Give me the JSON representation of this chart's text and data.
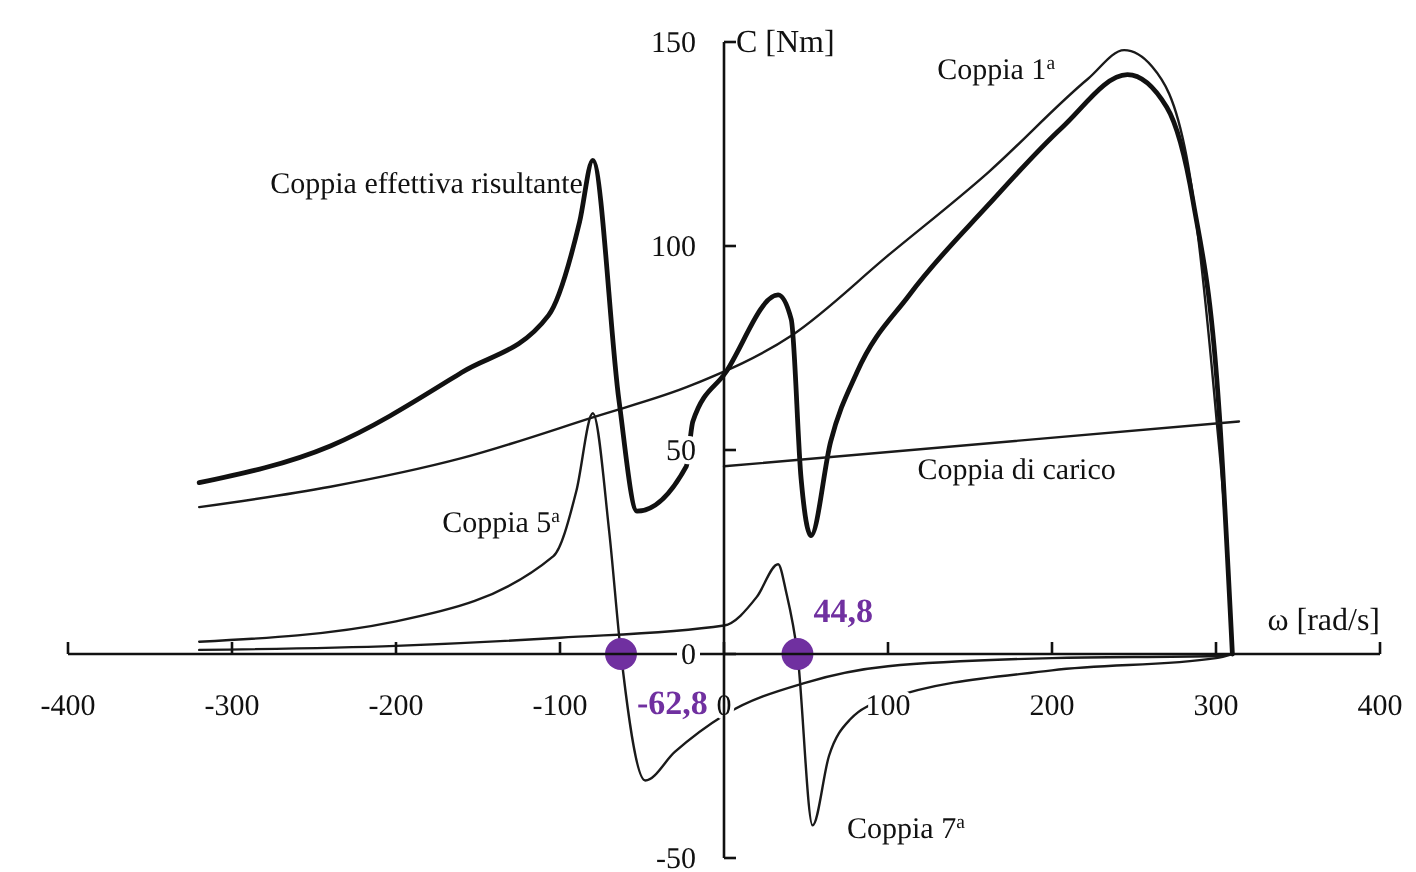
{
  "chart_data": {
    "type": "line",
    "xlabel": "ω [rad/s]",
    "ylabel": "C [Nm]",
    "xlim": [
      -400,
      400
    ],
    "ylim": [
      -50,
      150
    ],
    "xticks": [
      -400,
      -300,
      -200,
      -100,
      0,
      100,
      200,
      300,
      400
    ],
    "yticks": [
      -50,
      0,
      50,
      100,
      150
    ],
    "grid": false,
    "marker": "none",
    "annotations": [
      {
        "text": "-62,8",
        "x": -62.8,
        "y": 0
      },
      {
        "text": "44,8",
        "x": 44.8,
        "y": 0
      }
    ],
    "line_style": "solid",
    "series": [
      {
        "name": "Coppia 1$^{a}$",
        "color": "#1a1a1a",
        "x": [
          -320,
          -240,
          -160,
          -80,
          -19,
          41,
          101,
          161,
          222,
          244,
          261,
          282,
          300,
          306,
          310
        ],
        "values": [
          36,
          41,
          48,
          58,
          66,
          78,
          98,
          118,
          141,
          148,
          144,
          122,
          59,
          30,
          0
        ]
      },
      {
        "name": "Coppia effettiva risultante",
        "color": "#111111",
        "x": [
          -320,
          -240,
          -160,
          -107,
          -88,
          -80,
          -64,
          -53,
          -23,
          -19,
          1,
          33,
          41,
          47,
          53,
          65,
          81,
          113,
          161,
          206,
          246,
          270,
          286,
          302,
          310
        ],
        "values": [
          42,
          51,
          69,
          83,
          106,
          121,
          62,
          35,
          46,
          57,
          69,
          88,
          82,
          43,
          29,
          52,
          69,
          88,
          110,
          129,
          142,
          134,
          111,
          59,
          0
        ]
      },
      {
        "name": "Coppia 5$^{a}$",
        "color": "#1a1a1a",
        "x": [
          -320,
          -200,
          -104,
          -90,
          -80,
          -70,
          -62.8,
          -48,
          -30,
          0,
          50,
          100,
          200,
          300,
          310
        ],
        "values": [
          3,
          8,
          24,
          40,
          59,
          30,
          0,
          -31,
          -24,
          -15,
          -7,
          -3,
          -1,
          -0.5,
          0
        ]
      },
      {
        "name": "Coppia 7$^{a}$",
        "color": "#1a1a1a",
        "x": [
          -320,
          -200,
          -100,
          0,
          20,
          33,
          38,
          44.8,
          54,
          64,
          77,
          100,
          200,
          300,
          310
        ],
        "values": [
          1,
          2,
          4,
          7,
          14,
          22,
          15,
          0,
          -42,
          -25,
          -16,
          -11,
          -4,
          -1,
          0
        ]
      },
      {
        "name": "Coppia di carico",
        "color": "#1a1a1a",
        "x": [
          0,
          314
        ],
        "values": [
          46,
          57
        ]
      },
      {
        "type": "scatter",
        "color": "#7030a0",
        "marker": "circle",
        "x": [
          -62.8,
          44.8
        ],
        "values": [
          0,
          0
        ]
      }
    ]
  }
}
